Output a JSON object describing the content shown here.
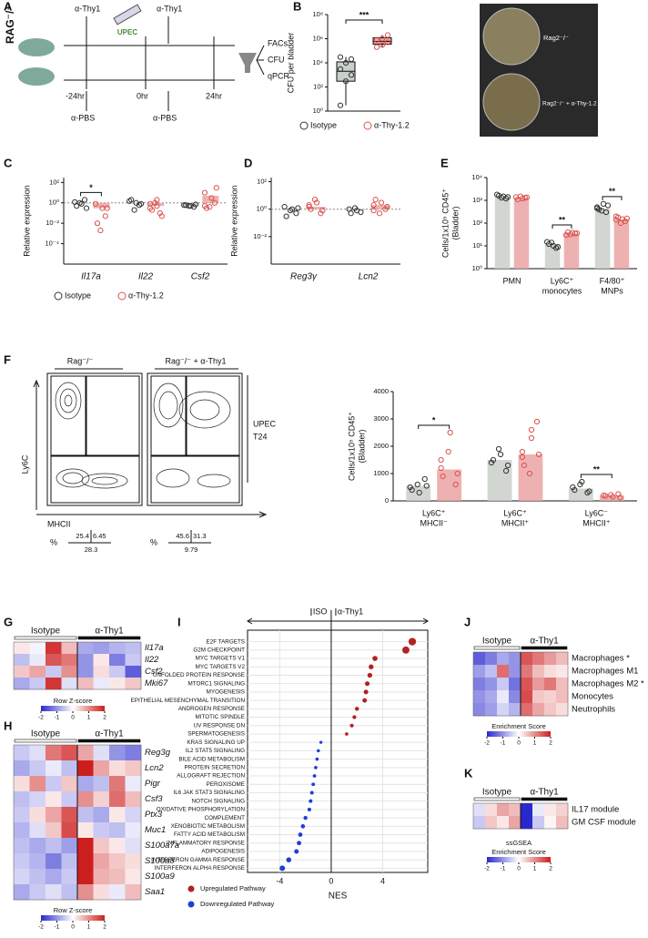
{
  "schematic": {
    "panel": "A",
    "strain": "RAG⁻/⁻",
    "antibody_first": "α-Thy1",
    "infection": "UPEC",
    "antibody_second": "α-Thy1",
    "times": [
      "-24hr",
      "0hr",
      "24hr"
    ],
    "control_first": "α-PBS",
    "control_second": "α-PBS",
    "readouts": [
      "FACs",
      "CFU",
      "qPCR"
    ]
  },
  "photo": {
    "labels": [
      "Rag2⁻/⁻",
      "Rag2⁻/⁻ + α-Thy-1.2"
    ]
  },
  "flow": {
    "panel": "F",
    "y_axis": "Ly6C",
    "x_axis": "MHCII",
    "condition": [
      "UPEC",
      "T24"
    ],
    "percent_sign": "%",
    "plots": [
      {
        "title": "Rag⁻/⁻",
        "gates": [
          25.4,
          6.45,
          28.3
        ]
      },
      {
        "title": "Rag⁻/⁻ + α-Thy1",
        "gates": [
          45.6,
          31.3,
          9.79
        ]
      }
    ]
  },
  "chart_data": [
    {
      "type": "box",
      "panel": "B",
      "ylabel": [
        "CFU per bladder"
      ],
      "log": true,
      "ylim": [
        1,
        100000000
      ],
      "yticks": [
        {
          "value": 1,
          "label": "10⁰"
        },
        {
          "value": 100,
          "label": "10²"
        },
        {
          "value": 10000,
          "label": "10⁴"
        },
        {
          "value": 1000000,
          "label": "10⁶"
        },
        {
          "value": 100000000,
          "label": "10⁸"
        }
      ],
      "significance": "***",
      "series": [
        {
          "name": "Isotype",
          "color": "#c9cfc9",
          "point_color": "#333333",
          "points": [
            3,
            300,
            1000,
            3000,
            10000,
            20000,
            30000
          ],
          "box": [
            3,
            300,
            2000,
            12000,
            30000
          ]
        },
        {
          "name": "α-Thy-1.2",
          "color": "#eba3a3",
          "point_color": "#d9534f",
          "points": [
            200000,
            300000,
            500000,
            800000,
            1000000,
            2000000
          ],
          "box": [
            200000,
            350000,
            600000,
            1200000,
            2000000
          ]
        }
      ]
    },
    {
      "type": "strip",
      "panel": "C",
      "ylabel": [
        "Relative expression"
      ],
      "log": true,
      "ylim": [
        1e-06,
        300
      ],
      "refline": 1,
      "yticks": [
        {
          "value": 0.0001,
          "label": "10⁻⁴"
        },
        {
          "value": 0.01,
          "label": "10⁻²"
        },
        {
          "value": 1,
          "label": "10⁰"
        },
        {
          "value": 100,
          "label": "10²"
        }
      ],
      "categories": [
        [
          "Il17a"
        ],
        [
          "Il22"
        ],
        [
          "Csf2"
        ]
      ],
      "significance": [
        "*",
        null,
        null
      ],
      "series": [
        {
          "name": "Isotype",
          "color": "#c9cfc9",
          "point_color": "#333333",
          "values": [
            0.9,
            1,
            0.5
          ],
          "points": [
            [
              1.2,
              0.8,
              2,
              0.5,
              1,
              0.3
            ],
            [
              1.5,
              1,
              0.6,
              2,
              0.2,
              0.8
            ],
            [
              0.6,
              0.5,
              0.4,
              0.6,
              0.5,
              0.7
            ]
          ]
        },
        {
          "name": "α-Thy-1.2",
          "color": "#eba3a3",
          "point_color": "#d9534f",
          "values": [
            0.3,
            0.5,
            5
          ],
          "points": [
            [
              0.8,
              0.3,
              0.05,
              0.01,
              0.002,
              0.3
            ],
            [
              0.8,
              0.5,
              0.1,
              0.2,
              1,
              0.05,
              0.3,
              2
            ],
            [
              10,
              3,
              1,
              0.3,
              0.4,
              30,
              0.5
            ]
          ]
        }
      ]
    },
    {
      "type": "strip",
      "panel": "D",
      "ylabel": [
        "Relative expression"
      ],
      "log": true,
      "ylim": [
        0.0001,
        200
      ],
      "refline": 1,
      "yticks": [
        {
          "value": 0.01,
          "label": "10⁻²"
        },
        {
          "value": 1,
          "label": "10⁰"
        },
        {
          "value": 100,
          "label": "10²"
        }
      ],
      "categories": [
        [
          "Reg3γ"
        ],
        [
          "Lcn2"
        ]
      ],
      "series": [
        {
          "color": "#c9cfc9",
          "point_color": "#333333",
          "values": [
            1,
            0.8
          ],
          "points": [
            [
              1.5,
              1,
              0.5,
              0.3,
              0.8,
              1.2
            ],
            [
              1,
              0.8,
              0.6,
              0.5,
              1.2
            ]
          ]
        },
        {
          "color": "#eba3a3",
          "point_color": "#d9534f",
          "values": [
            1.5,
            2
          ],
          "points": [
            [
              2,
              3,
              0.5,
              1,
              5,
              0.8,
              1.5
            ],
            [
              2,
              3,
              1,
              5,
              0.5,
              1.5,
              0.8
            ]
          ]
        }
      ]
    },
    {
      "type": "strip",
      "panel": "E",
      "ylabel": [
        "Cells/1x10⁵ CD45⁺",
        "(Bladder)"
      ],
      "log": true,
      "ylim": [
        1,
        10000
      ],
      "yticks": [
        {
          "value": 1,
          "label": "10⁰"
        },
        {
          "value": 10,
          "label": "10¹"
        },
        {
          "value": 100,
          "label": "10²"
        },
        {
          "value": 1000,
          "label": "10³"
        },
        {
          "value": 10000,
          "label": "10⁴"
        }
      ],
      "categories": [
        [
          "PMN"
        ],
        [
          "Ly6C⁺",
          "monocytes"
        ],
        [
          "F4/80⁺",
          "MNPs"
        ]
      ],
      "significance": [
        null,
        "**",
        "**"
      ],
      "series": [
        {
          "color": "#c9cfc9",
          "point_color": "#333333",
          "values": [
            1500,
            12,
            450
          ],
          "points": [
            [
              1800,
              1500,
              1200,
              1600,
              1300,
              1400
            ],
            [
              15,
              10,
              8,
              12,
              14,
              9
            ],
            [
              500,
              700,
              300,
              400,
              350,
              600,
              450
            ]
          ]
        },
        {
          "color": "#eba3a3",
          "point_color": "#d9534f",
          "values": [
            1300,
            35,
            150
          ],
          "points": [
            [
              1400,
              1200,
              1300,
              1100,
              1500,
              1350
            ],
            [
              30,
              38,
              35,
              40,
              32,
              36
            ],
            [
              200,
              150,
              120,
              180,
              100,
              160,
              140
            ]
          ]
        }
      ]
    },
    {
      "type": "strip",
      "ylabel": [
        "Cells/1x10⁵ CD45⁺",
        "(Bladder)"
      ],
      "log": false,
      "ylim": [
        0,
        4000
      ],
      "yticks": [
        0,
        1000,
        2000,
        3000,
        4000
      ],
      "categories": [
        [
          "Ly6C⁺",
          "MHCII⁻"
        ],
        [
          "Ly6C⁺",
          "MHCII⁺"
        ],
        [
          "Ly6C⁻",
          "MHCII⁺"
        ]
      ],
      "significance": [
        "*",
        null,
        "**"
      ],
      "series": [
        {
          "color": "#c9cfc9",
          "point_color": "#333333",
          "values": [
            550,
            1500,
            450
          ],
          "points": [
            [
              500,
              300,
              800,
              400,
              600,
              550
            ],
            [
              1400,
              1700,
              1100,
              1500,
              1900,
              1300
            ],
            [
              500,
              700,
              300,
              400,
              600,
              350
            ]
          ]
        },
        {
          "color": "#eba3a3",
          "point_color": "#d9534f",
          "values": [
            1150,
            1700,
            200
          ],
          "points": [
            [
              1200,
              2500,
              600,
              900,
              1800,
              1000,
              1500
            ],
            [
              1800,
              2300,
              2900,
              1300,
              1000,
              1700,
              1600,
              2600
            ],
            [
              200,
              150,
              250,
              180,
              220,
              120
            ]
          ]
        }
      ]
    },
    {
      "type": "dot",
      "panel": "I",
      "header": [
        "ISO",
        "α-Thy1"
      ],
      "xlabel": "NES",
      "xlim": [
        -6.5,
        7.5
      ],
      "xticks": [
        -4,
        0,
        4
      ],
      "grid": true,
      "categories": [
        "E2F TARGETS",
        "G2M CHECKPOINT",
        "MYC TARGETS V1",
        "MYC TARGETS V2",
        "UNFOLDED PROTEIN RESPONSE",
        "MTORC1 SIGNALING",
        "MYOGENESIS",
        "EPITHELIAL MESENCHYMAL TRANSITION",
        "ANDROGEN RESPONSE",
        "MITOTIC SPINDLE",
        "UV RESPONSE DN",
        "SPERMATOGENESIS",
        "KRAS SIGNALING UP",
        "IL2 STAT5 SIGNALING",
        "BILE ACID METABOLISM",
        "PROTEIN SECRETION",
        "ALLOGRAFT REJECTION",
        "PEROXISOME",
        "IL6 JAK STAT3 SIGNALING",
        "NOTCH SIGNALING",
        "OXIDATIVE PHOSPHORYLATION",
        "COMPLEMENT",
        "XENOBIOTIC METABOLISM",
        "FATTY ACID METABOLISM",
        "INFLAMMATORY RESPONSE",
        "ADIPOGENESIS",
        "INTERFERON GAMMA RESPONSE",
        "INTERFERON ALPHA RESPONSE"
      ],
      "series": [
        {
          "name": "Upregulated Pathway",
          "color": "#b22222",
          "values": [
            6.3,
            5.8,
            3.4,
            3.1,
            3.0,
            2.8,
            2.7,
            2.6,
            2.0,
            1.8,
            1.6,
            1.2,
            null,
            null,
            null,
            null,
            null,
            null,
            null,
            null,
            null,
            null,
            null,
            null,
            null,
            null,
            null,
            null
          ]
        },
        {
          "name": "Downregulated Pathway",
          "color": "#1f3fd6",
          "values": [
            null,
            null,
            null,
            null,
            null,
            null,
            null,
            null,
            null,
            null,
            null,
            null,
            -0.8,
            -1.0,
            -1.1,
            -1.2,
            -1.3,
            -1.4,
            -1.5,
            -1.6,
            -1.7,
            -2.0,
            -2.2,
            -2.4,
            -2.5,
            -2.7,
            -3.3,
            -3.8
          ]
        }
      ]
    },
    {
      "type": "heatmap",
      "panel": "G",
      "groups": [
        "Isotype",
        "α-Thy1"
      ],
      "rows": [
        "Il17a",
        "Il22",
        "Csf2",
        "Mki67"
      ],
      "clim": [
        -2,
        2
      ],
      "cticks": [
        -2,
        -1,
        0,
        1,
        2
      ],
      "clabel": [
        "Row Z-score"
      ],
      "values": [
        [
          0.2,
          -0.1,
          1.8,
          0.6,
          -0.8,
          -0.9,
          -0.7,
          -0.6
        ],
        [
          -0.6,
          -0.2,
          1.5,
          1.2,
          -1.0,
          0.2,
          -1.2,
          -0.5
        ],
        [
          0.5,
          0.8,
          -0.5,
          1.0,
          -1.0,
          0.3,
          -0.5,
          -1.5
        ],
        [
          -0.8,
          -0.5,
          1.8,
          -0.3,
          0.6,
          -0.2,
          0.2,
          0.5
        ]
      ]
    },
    {
      "type": "heatmap",
      "panel": "H",
      "groups": [
        "Isotype",
        "α-Thy1"
      ],
      "rows": [
        "Reg3g",
        "Lcn2",
        "Pigr",
        "Csf3",
        "Ptx3",
        "Muc1",
        "S100a7a",
        "S100a8",
        "S100a9",
        "Saa1"
      ],
      "clim": [
        -2,
        2
      ],
      "cticks": [
        -2,
        -1,
        0,
        1,
        2
      ],
      "clabel": [
        "Row Z-score"
      ],
      "values": [
        [
          -0.5,
          -0.3,
          1.2,
          1.5,
          0.8,
          -0.3,
          -1.0,
          -1.2
        ],
        [
          -0.8,
          -0.5,
          -0.2,
          -0.6,
          2.2,
          0.8,
          0.3,
          0.5
        ],
        [
          0.3,
          1.0,
          -0.5,
          0.5,
          -0.8,
          -0.6,
          1.2,
          -0.2
        ],
        [
          -0.6,
          -0.4,
          0.2,
          -0.5,
          1.0,
          0.4,
          1.3,
          0.6
        ],
        [
          -0.5,
          0.3,
          0.8,
          1.5,
          -0.6,
          -0.8,
          0.2,
          -0.4
        ],
        [
          -0.7,
          -0.3,
          0.5,
          1.6,
          0.2,
          -0.5,
          -0.6,
          -0.2
        ],
        [
          -0.6,
          -0.8,
          -0.6,
          -0.9,
          2.2,
          0.5,
          0.2,
          -0.3
        ],
        [
          -0.5,
          -0.7,
          -1.2,
          -0.6,
          2.4,
          0.8,
          0.5,
          0.3
        ],
        [
          -0.4,
          -0.6,
          -0.8,
          -0.5,
          2.3,
          0.7,
          0.6,
          0.2
        ],
        [
          -0.8,
          -0.5,
          -0.3,
          -0.6,
          1.0,
          0.3,
          -0.2,
          0.6
        ]
      ]
    },
    {
      "type": "heatmap",
      "panel": "J",
      "groups": [
        "Isotype",
        "α-Thy1"
      ],
      "rows": [
        "Macrophages *",
        "Macrophages M1",
        "Macrophages M2 *",
        "Monocytes",
        "Neutrophils"
      ],
      "clim": [
        -2,
        2
      ],
      "cticks": [
        -2,
        -1,
        0,
        1,
        2
      ],
      "clabel": [
        "Enrichment Score"
      ],
      "values": [
        [
          -1.5,
          -1.2,
          -0.8,
          -1.0,
          1.5,
          1.2,
          0.9,
          0.6
        ],
        [
          -0.9,
          -0.6,
          1.3,
          -1.0,
          1.2,
          0.6,
          0.3,
          0.2
        ],
        [
          -1.2,
          -1.0,
          -0.5,
          -1.3,
          1.5,
          0.9,
          1.2,
          0.6
        ],
        [
          -1.0,
          -0.8,
          -0.2,
          -1.1,
          1.6,
          0.5,
          0.4,
          0.6
        ],
        [
          -1.1,
          -0.9,
          -0.4,
          -0.7,
          1.3,
          0.8,
          0.5,
          0.3
        ]
      ]
    },
    {
      "type": "heatmap",
      "panel": "K",
      "groups": [
        "Isotype",
        "α-Thy1"
      ],
      "rows": [
        "IL17 module",
        "GM CSF module"
      ],
      "clim": [
        -2,
        2
      ],
      "cticks": [
        -2,
        -1,
        0,
        1,
        2
      ],
      "clabel": [
        "ssGSEA",
        "Enrichment Score"
      ],
      "values": [
        [
          -0.3,
          0.3,
          0.8,
          0.6,
          -2.0,
          -0.2,
          0.2,
          0.4
        ],
        [
          -0.5,
          0.5,
          0.2,
          0.8,
          -2.0,
          -0.5,
          0.1,
          0.6
        ]
      ]
    }
  ]
}
